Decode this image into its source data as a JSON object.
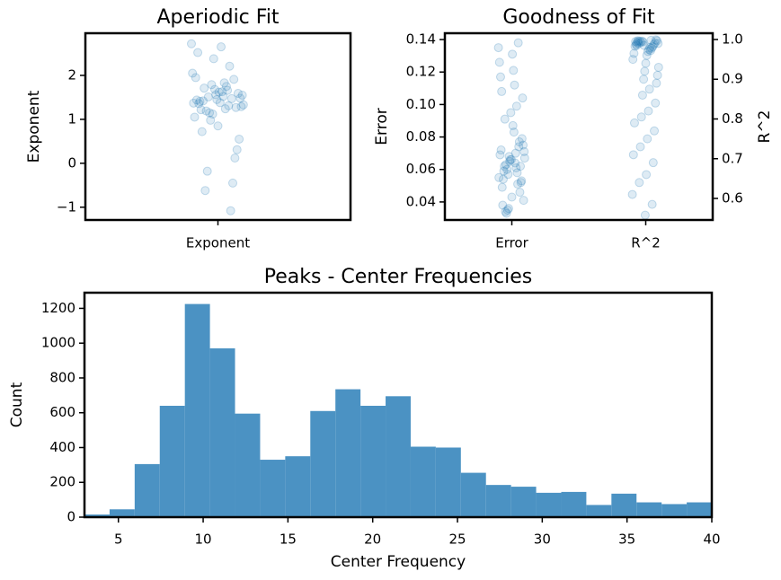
{
  "chart_data": [
    {
      "type": "scatter",
      "title": "Aperiodic Fit",
      "ylabel": "Exponent",
      "categories": [
        "Exponent"
      ],
      "series": [
        {
          "color": "#1f77b4",
          "values": [
            1.42,
            1.55,
            1.31,
            1.68,
            1.22,
            1.48,
            1.75,
            1.12,
            1.36,
            1.59,
            1.83,
            0.98,
            1.44,
            1.27,
            1.63,
            1.51,
            1.05,
            1.91,
            1.38,
            1.19,
            2.05,
            1.47,
            0.85,
            1.71,
            1.33,
            2.21,
            1.56,
            0.72,
            1.29,
            1.66,
            2.38,
            1.41,
            0.55,
            1.24,
            1.79,
            2.52,
            0.31,
            1.52,
            1.15,
            1.95,
            0.12,
            2.65,
            -0.18,
            1.37,
            -0.45,
            1.62,
            -0.62,
            2.72,
            -1.08,
            1.45
          ]
        }
      ],
      "ylim": [
        -1.29,
        2.96
      ],
      "yticks": [
        {
          "value": -1,
          "label": "−1"
        },
        0,
        1,
        2
      ]
    },
    {
      "type": "scatter",
      "title": "Goodness of Fit",
      "ylabel": "Error",
      "y2label": "R^2",
      "categories": [
        "Error",
        "R^2"
      ],
      "series": [
        {
          "color": "#1f77b4",
          "values": [
            0.062,
            0.071,
            0.058,
            0.066,
            0.054,
            0.075,
            0.061,
            0.068,
            0.049,
            0.079,
            0.064,
            0.057,
            0.072,
            0.052,
            0.083,
            0.06,
            0.069,
            0.046,
            0.087,
            0.063,
            0.055,
            0.074,
            0.043,
            0.091,
            0.067,
            0.051,
            0.095,
            0.059,
            0.041,
            0.099,
            0.065,
            0.038,
            0.104,
            0.07,
            0.036,
            0.108,
            0.053,
            0.112,
            0.035,
            0.117,
            0.062,
            0.121,
            0.033,
            0.126,
            0.077,
            0.131,
            0.034,
            0.135,
            0.138,
            0.066
          ]
        },
        {
          "color": "#1f77b4",
          "axis": "y2",
          "values": [
            0.995,
            0.99,
            0.998,
            0.985,
            0.992,
            0.997,
            0.98,
            0.994,
            0.988,
            0.999,
            0.975,
            0.996,
            0.983,
            0.991,
            0.97,
            0.993,
            0.965,
            0.987,
            0.96,
            0.996,
            0.95,
            0.982,
            0.94,
            0.99,
            0.93,
            0.978,
            0.92,
            0.997,
            0.91,
            0.972,
            0.9,
            0.985,
            0.89,
            0.875,
            0.86,
            0.995,
            0.84,
            0.82,
            0.805,
            0.79,
            0.77,
            0.75,
            0.73,
            0.71,
            0.69,
            0.66,
            0.64,
            0.61,
            0.585,
            0.558
          ]
        }
      ],
      "ylim": [
        0.0289,
        0.1439
      ],
      "yticks": [
        0.04,
        0.06,
        0.08,
        {
          "value": 0.1,
          "label": "0.10"
        },
        0.12,
        0.14
      ],
      "y2lim": [
        0.5458,
        1.0158
      ],
      "y2ticks": [
        0.6,
        0.7,
        0.8,
        0.9,
        {
          "value": 1,
          "label": "1.0"
        }
      ]
    },
    {
      "type": "histogram",
      "title": "Peaks - Center Frequencies",
      "xlabel": "Center Frequency",
      "ylabel": "Count",
      "color": "#4b92c3",
      "bins": [
        3,
        4.48,
        5.96,
        7.44,
        8.92,
        10.4,
        11.88,
        13.36,
        14.84,
        16.32,
        17.8,
        19.28,
        20.76,
        22.24,
        23.72,
        25.2,
        26.68,
        28.16,
        29.64,
        31.12,
        32.6,
        34.08,
        35.56,
        37.04,
        38.52,
        40
      ],
      "values": [
        15,
        45,
        305,
        640,
        1225,
        970,
        595,
        330,
        350,
        610,
        735,
        640,
        695,
        405,
        400,
        255,
        185,
        175,
        140,
        145,
        70,
        135,
        85,
        75,
        85
      ],
      "xlim": [
        3,
        40
      ],
      "xticks": [
        5,
        10,
        15,
        20,
        25,
        30,
        35,
        40
      ],
      "ylim": [
        0,
        1290
      ],
      "yticks": [
        0,
        200,
        400,
        600,
        800,
        1000,
        1200
      ]
    }
  ]
}
